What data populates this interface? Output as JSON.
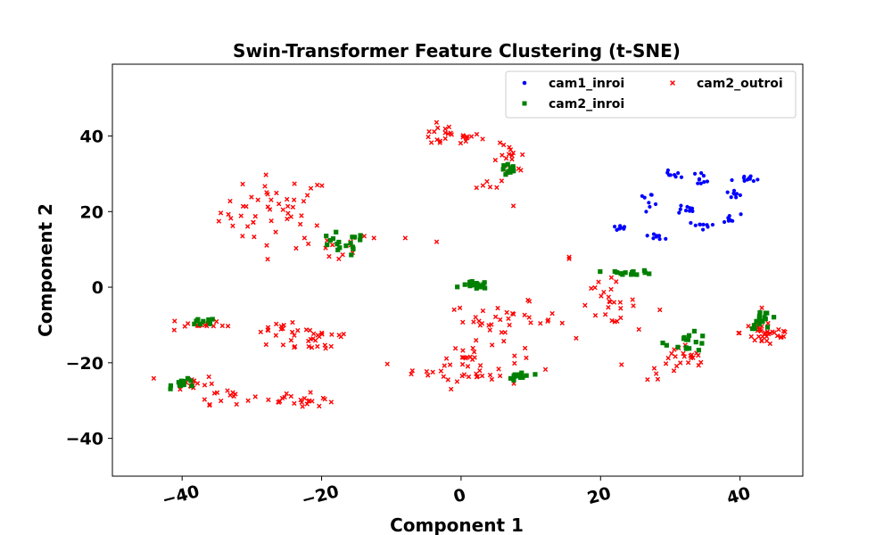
{
  "chart_data": {
    "type": "scatter",
    "title": "Swin-Transformer Feature Clustering (t-SNE)",
    "xlabel": "Component 1",
    "ylabel": "Component 2",
    "xlim": [
      -50,
      49
    ],
    "ylim": [
      -50,
      59
    ],
    "xticks": [
      -40,
      -20,
      0,
      20,
      40
    ],
    "yticks": [
      -40,
      -20,
      0,
      20,
      40
    ],
    "xtick_labels": [
      "−40",
      "−20",
      "0",
      "20",
      "40"
    ],
    "ytick_labels": [
      "−40",
      "−20",
      "0",
      "20",
      "40"
    ],
    "grid": false,
    "legend_position": "top-right",
    "legend_columns": 2,
    "series": [
      {
        "name": "cam1_inroi",
        "color": "#0000ff",
        "marker": "circle",
        "clusters": [
          {
            "center": [
              22.5,
              15.7
            ],
            "spread": [
              0.8,
              0.6
            ],
            "count": 8
          },
          {
            "center": [
              27.0,
              23.2
            ],
            "spread": [
              1.0,
              1.0
            ],
            "count": 8
          },
          {
            "center": [
              28.0,
              13.6
            ],
            "spread": [
              0.7,
              0.6
            ],
            "count": 8
          },
          {
            "center": [
              30.5,
              29.5
            ],
            "spread": [
              1.2,
              0.8
            ],
            "count": 9
          },
          {
            "center": [
              32.0,
              20.5
            ],
            "spread": [
              1.1,
              0.9
            ],
            "count": 10
          },
          {
            "center": [
              34.5,
              28.8
            ],
            "spread": [
              0.6,
              1.0
            ],
            "count": 8
          },
          {
            "center": [
              34.2,
              16.3
            ],
            "spread": [
              1.0,
              0.6
            ],
            "count": 9
          },
          {
            "center": [
              38.5,
              18.0
            ],
            "spread": [
              1.0,
              0.8
            ],
            "count": 8
          },
          {
            "center": [
              39.0,
              24.5
            ],
            "spread": [
              1.0,
              0.8
            ],
            "count": 8
          },
          {
            "center": [
              41.0,
              28.3
            ],
            "spread": [
              1.3,
              0.8
            ],
            "count": 10
          }
        ]
      },
      {
        "name": "cam2_inroi",
        "color": "#008000",
        "marker": "square",
        "clusters": [
          {
            "center": [
              -17.5,
              11.2
            ],
            "spread": [
              2.4,
              2.0
            ],
            "count": 18
          },
          {
            "center": [
              7.0,
              31.0
            ],
            "spread": [
              0.8,
              1.0
            ],
            "count": 12
          },
          {
            "center": [
              2.0,
              0.5
            ],
            "spread": [
              1.2,
              0.6
            ],
            "count": 16
          },
          {
            "center": [
              -37.2,
              -9.5
            ],
            "spread": [
              1.3,
              0.9
            ],
            "count": 10
          },
          {
            "center": [
              -39.5,
              -25.5
            ],
            "spread": [
              1.2,
              0.7
            ],
            "count": 12
          },
          {
            "center": [
              8.5,
              -23.5
            ],
            "spread": [
              1.1,
              0.8
            ],
            "count": 16
          },
          {
            "center": [
              24.5,
              3.8
            ],
            "spread": [
              2.0,
              0.4
            ],
            "count": 14
          },
          {
            "center": [
              32.5,
              -14.5
            ],
            "spread": [
              2.0,
              1.5
            ],
            "count": 16
          },
          {
            "center": [
              43.5,
              -8.5
            ],
            "spread": [
              1.3,
              1.5
            ],
            "count": 16
          }
        ]
      },
      {
        "name": "cam2_outroi",
        "color": "#ff0000",
        "marker": "x",
        "clusters": [
          {
            "center": [
              -26.5,
              20.0
            ],
            "spread": [
              5.0,
              6.0
            ],
            "count": 50
          },
          {
            "center": [
              -17.5,
              10.5
            ],
            "spread": [
              3.0,
              2.5
            ],
            "count": 12
          },
          {
            "center": [
              -2.0,
              40.0
            ],
            "spread": [
              3.0,
              1.8
            ],
            "count": 25
          },
          {
            "center": [
              7.0,
              33.0
            ],
            "spread": [
              1.5,
              3.0
            ],
            "count": 16
          },
          {
            "center": [
              4.5,
              27.5
            ],
            "spread": [
              1.5,
              1.0
            ],
            "count": 6
          },
          {
            "center": [
              -38.0,
              -10.0
            ],
            "spread": [
              2.5,
              1.2
            ],
            "count": 12
          },
          {
            "center": [
              -29.0,
              -10.5
            ],
            "spread": [
              4.0,
              1.0
            ],
            "count": 12
          },
          {
            "center": [
              -21.0,
              -13.5
            ],
            "spread": [
              4.0,
              2.5
            ],
            "count": 30
          },
          {
            "center": [
              -38.5,
              -25.5
            ],
            "spread": [
              2.0,
              1.5
            ],
            "count": 14
          },
          {
            "center": [
              -34.0,
              -28.5
            ],
            "spread": [
              2.5,
              1.5
            ],
            "count": 14
          },
          {
            "center": [
              -26.0,
              -30.0
            ],
            "spread": [
              1.5,
              1.0
            ],
            "count": 8
          },
          {
            "center": [
              -21.5,
              -30.0
            ],
            "spread": [
              2.0,
              1.2
            ],
            "count": 14
          },
          {
            "center": [
              1.0,
              -21.0
            ],
            "spread": [
              5.0,
              3.5
            ],
            "count": 45
          },
          {
            "center": [
              6.0,
              -9.0
            ],
            "spread": [
              5.0,
              3.0
            ],
            "count": 35
          },
          {
            "center": [
              21.0,
              -4.0
            ],
            "spread": [
              2.5,
              3.5
            ],
            "count": 25
          },
          {
            "center": [
              31.5,
              -20.0
            ],
            "spread": [
              3.0,
              3.0
            ],
            "count": 25
          },
          {
            "center": [
              44.0,
              -12.0
            ],
            "spread": [
              2.5,
              2.5
            ],
            "count": 35
          }
        ],
        "extra_points": [
          [
            -12.5,
            13.0
          ],
          [
            -8.0,
            13.0
          ],
          [
            -3.5,
            12.0
          ],
          [
            7.5,
            21.5
          ],
          [
            15.5,
            7.5
          ],
          [
            15.5,
            8.0
          ],
          [
            14.5,
            -9.5
          ],
          [
            16.5,
            -13.5
          ],
          [
            23.0,
            -20.5
          ],
          [
            28.5,
            -6.0
          ]
        ]
      }
    ]
  }
}
